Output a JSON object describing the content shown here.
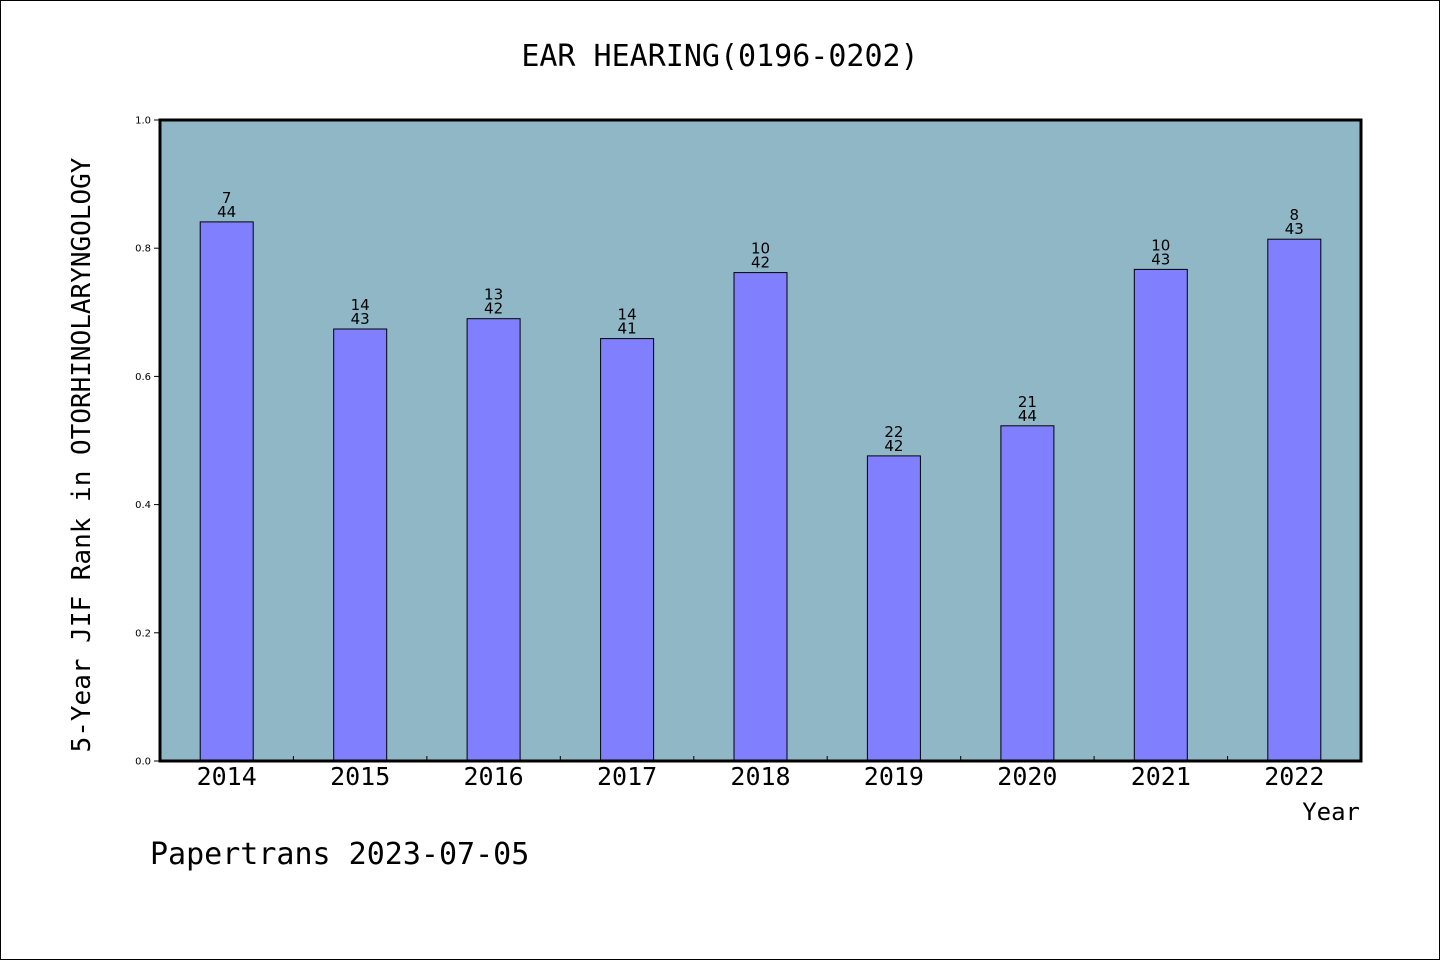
{
  "chart_data": {
    "type": "bar",
    "title": "EAR HEARING(0196-0202)",
    "xlabel": "Year",
    "ylabel": "5-Year JIF Rank in OTORHINOLARYNGOLOGY",
    "ylim": [
      0,
      1.0
    ],
    "yticks": [
      "0.0",
      "0.2",
      "0.4",
      "0.6",
      "0.8",
      "1.0"
    ],
    "grid": false,
    "categories": [
      "2014",
      "2015",
      "2016",
      "2017",
      "2018",
      "2019",
      "2020",
      "2021",
      "2022"
    ],
    "values": [
      0.841,
      0.674,
      0.69,
      0.659,
      0.762,
      0.476,
      0.523,
      0.767,
      0.814
    ],
    "bar_labels": [
      [
        "7",
        "44"
      ],
      [
        "14",
        "43"
      ],
      [
        "13",
        "42"
      ],
      [
        "14",
        "41"
      ],
      [
        "10",
        "42"
      ],
      [
        "22",
        "42"
      ],
      [
        "21",
        "44"
      ],
      [
        "10",
        "43"
      ],
      [
        "8",
        "43"
      ]
    ],
    "colors": {
      "plot_background": "#8fb7c6",
      "bar_fill": "#8080ff",
      "bar_stroke": "#000000"
    }
  },
  "footer": {
    "watermark": "Papertrans 2023-07-05"
  }
}
